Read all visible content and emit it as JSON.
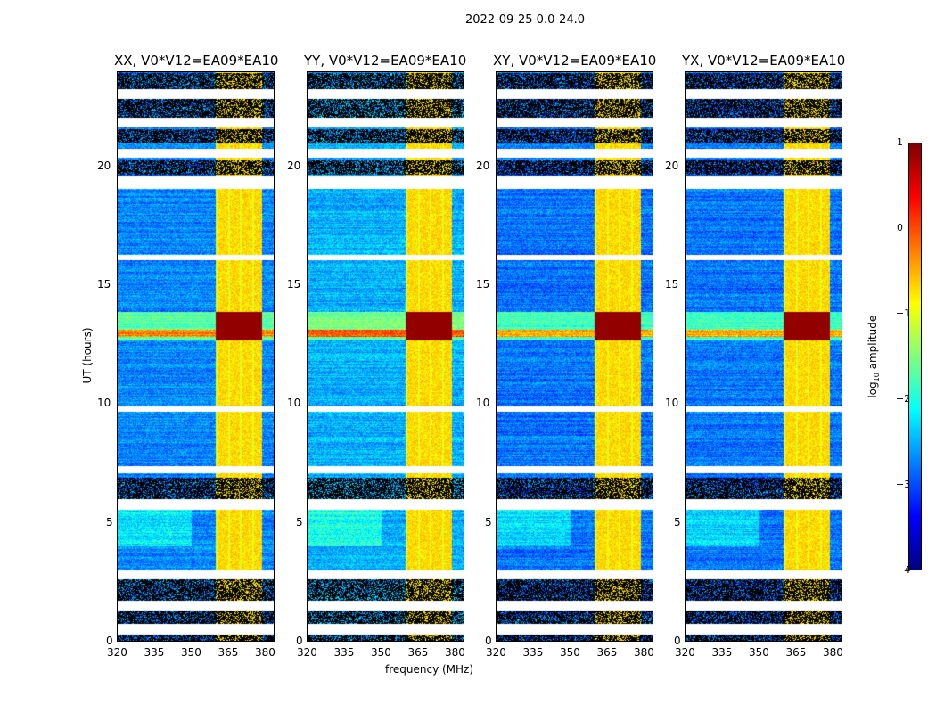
{
  "chart_data": {
    "type": "heatmap",
    "title": "2022-09-25 0.0-24.0",
    "xlabel": "frequency (MHz)",
    "ylabel": "UT (hours)",
    "xlim": [
      320,
      384
    ],
    "ylim": [
      0,
      24
    ],
    "xticks": [
      "320",
      "335",
      "350",
      "365",
      "380"
    ],
    "yticks": [
      "0",
      "5",
      "10",
      "15",
      "20"
    ],
    "panels": [
      {
        "title": "XX, V0*V12=EA09*EA10",
        "background_level": -2.9
      },
      {
        "title": "YY, V0*V12=EA09*EA10",
        "background_level": -2.7
      },
      {
        "title": "XY, V0*V12=EA09*EA10",
        "background_level": -3.0
      },
      {
        "title": "YX, V0*V12=EA09*EA10",
        "background_level": -3.0
      }
    ],
    "rfi_band_mhz": [
      360,
      379
    ],
    "rfi_level": -0.7,
    "hot_band_hours": [
      12.7,
      13.9
    ],
    "hot_level": 0.9,
    "flagged_white_hours": [
      [
        0.3,
        0.75
      ],
      [
        1.3,
        1.7
      ],
      [
        2.6,
        3.0
      ],
      [
        5.55,
        6.0
      ],
      [
        7.1,
        7.4
      ],
      [
        9.7,
        9.9
      ],
      [
        16.1,
        16.3
      ],
      [
        19.1,
        19.6
      ],
      [
        20.4,
        20.8
      ],
      [
        21.7,
        22.1
      ],
      [
        22.9,
        23.3
      ]
    ],
    "flagged_black_hours": [
      [
        0,
        0.3
      ],
      [
        0.75,
        1.3
      ],
      [
        1.7,
        2.6
      ],
      [
        6.0,
        6.9
      ],
      [
        19.7,
        20.3
      ],
      [
        21.0,
        21.6
      ],
      [
        22.1,
        22.9
      ],
      [
        23.3,
        24
      ]
    ],
    "colorbar": {
      "label": "log10 amplitude",
      "label_main": "log",
      "label_sub": "10",
      "label_rest": " amplitude",
      "range": [
        -4,
        1
      ],
      "ticks": [
        "1",
        "0",
        "−1",
        "−2",
        "−3",
        "−4"
      ],
      "colormap": "jet"
    }
  }
}
